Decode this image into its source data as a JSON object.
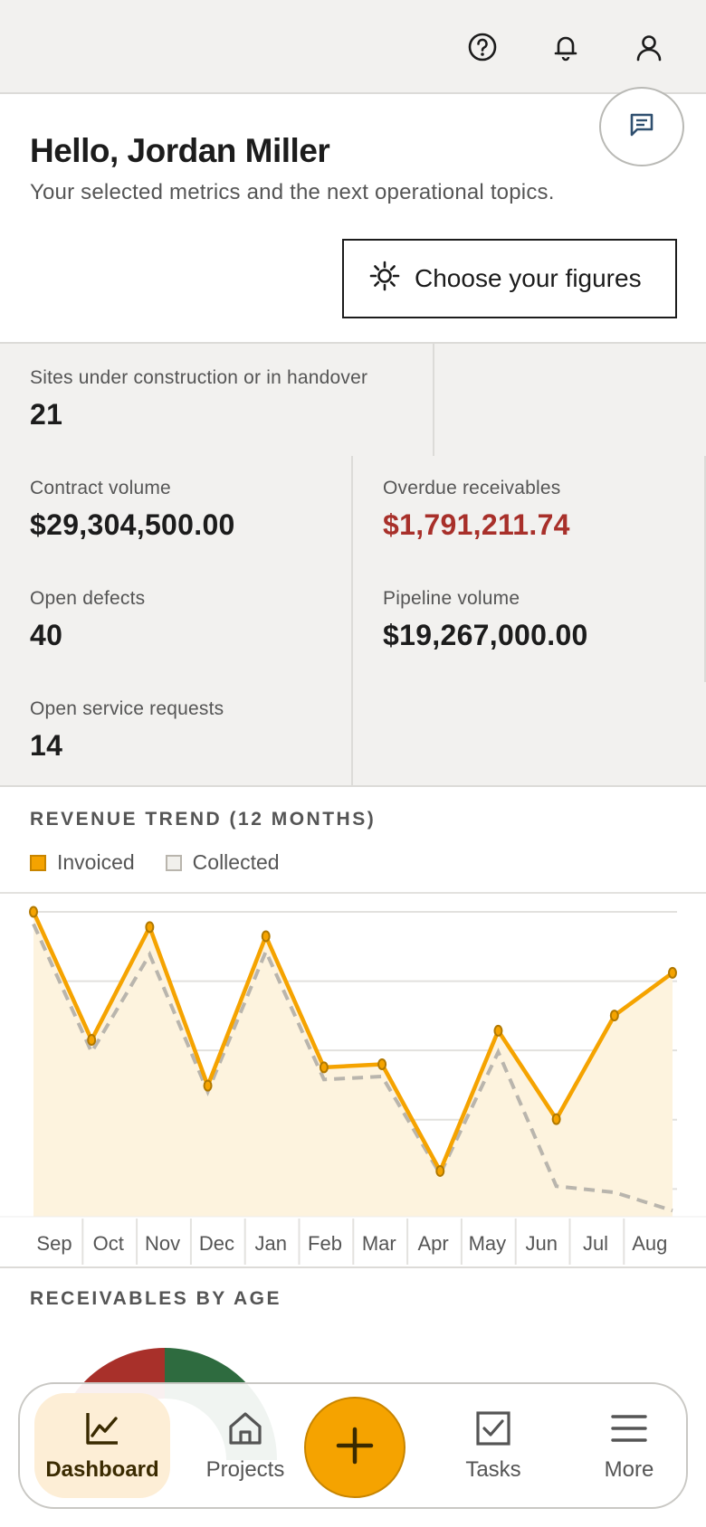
{
  "greeting": {
    "title": "Hello, Jordan Miller",
    "subtitle": "Your selected metrics and the next operational topics."
  },
  "actions": {
    "choose_figures": "Choose your figures"
  },
  "icons": {
    "help": "help-icon",
    "notifications": "bell-icon",
    "profile": "user-icon",
    "chat": "chat-icon",
    "settings": "gear-icon"
  },
  "metrics": [
    {
      "label": "Sites under construction or in handover",
      "value": "21"
    },
    {
      "label": "Contract volume",
      "value": "$29,304,500.00"
    },
    {
      "label": "Overdue receivables",
      "value": "$1,791,211.74",
      "status_color": "#a8302a"
    },
    {
      "label": "Open defects",
      "value": "40"
    },
    {
      "label": "Pipeline volume",
      "value": "$19,267,000.00"
    },
    {
      "label": "Open service requests",
      "value": "14"
    }
  ],
  "revenue_trend": {
    "title": "REVENUE TREND (12 MONTHS)"
  },
  "chart_data": {
    "type": "line",
    "categories": [
      "Sep",
      "Oct",
      "Nov",
      "Dec",
      "Jan",
      "Feb",
      "Mar",
      "Apr",
      "May",
      "Jun",
      "Jul",
      "Aug"
    ],
    "series": [
      {
        "name": "Invoiced",
        "values": [
          100,
          58,
          95,
          43,
          92,
          49,
          50,
          15,
          61,
          32,
          66,
          80
        ],
        "color": "#f5a300"
      },
      {
        "name": "Collected",
        "values": [
          96,
          54,
          86,
          41,
          87,
          45,
          46,
          14,
          54,
          10,
          8,
          2
        ],
        "color": "#b9b5ad"
      }
    ],
    "ylim": [
      0,
      100
    ],
    "grid": true,
    "legend": "top-left"
  },
  "receivables": {
    "title": "RECEIVABLES BY AGE"
  },
  "nav": {
    "dashboard": "Dashboard",
    "projects": "Projects",
    "tasks": "Tasks",
    "more": "More"
  }
}
